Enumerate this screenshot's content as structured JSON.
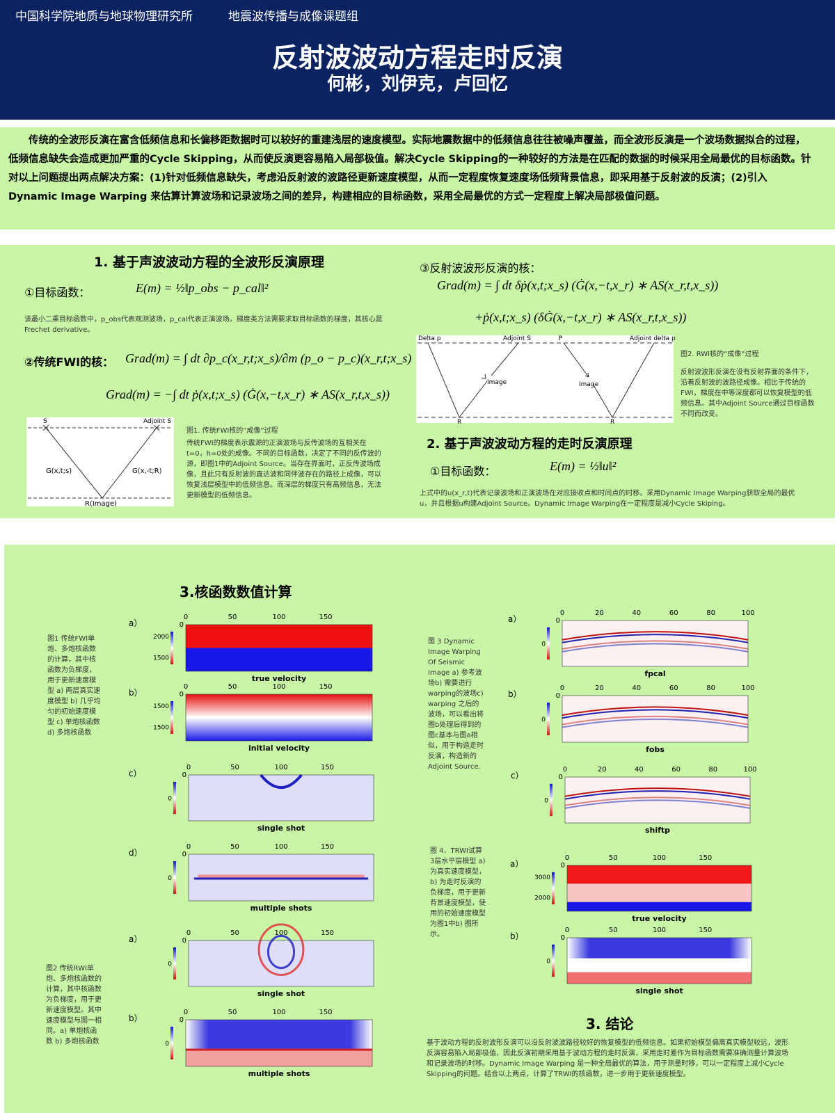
{
  "header": {
    "institution": "中国科学院地质与地球物理研究所",
    "group": "地震波传播与成像课题组",
    "title": "反射波波动方程走时反演",
    "authors": "何彬，刘伊克，卢回忆"
  },
  "abstract": "传统的全波形反演在富含低频信息和长偏移距数据时可以较好的重建浅层的速度模型。实际地震数据中的低频信息往往被噪声覆盖，而全波形反演是一个波场数据拟合的过程，低频信息缺失会造成更加严重的Cycle Skipping，从而使反演更容易陷入局部极值。解决Cycle Skipping的一种较好的方法是在匹配的数据的时候采用全局最优的目标函数。针对以上问题提出两点解决方案：(1)针对低频信息缺失，考虑沿反射波的波路径更新速度模型，从而一定程度恢复速度场低频背景信息，即采用基于反射波的反演；(2)引入 Dynamic Image Warping 来估算计算波场和记录波场之间的差异，构建相应的目标函数，采用全局最优的方式一定程度上解决局部极值问题。",
  "section1": {
    "heading": "1. 基于声波波动方程的全波形反演原理",
    "objective_label": "①目标函数：",
    "objective_formula": "E(m) = ½‖p_obs − p_cal‖²",
    "objective_note": "该最小二乘目标函数中，p_obs代表观测波场，p_cal代表正演波场。梯度类方法需要求取目标函数的梯度，其核心是Frechet derivative。",
    "kernel_label": "②传统FWI的核：",
    "kernel_formula1": "Grad(m) = ∫ dt ∂p_c(x_r,t;x_s)/∂m (p_o − p_c)(x_r,t;x_s)",
    "kernel_formula2": "Grad(m) = −∫ dt ṗ(x,t;x_s) (Ġ(x,−t,x_r) ∗ AS(x_r,t,x_s))",
    "diagram": {
      "source": "S",
      "adjoint": "Adjoint S",
      "left_path": "G(x,t;s)",
      "right_path": "G(x,-t;R)",
      "image": "R(Image)"
    },
    "caption_title": "图1. 传统FWI核的“成像”过程",
    "caption": "传统FWI的梯度表示震源的正演波场与反传波场的互相关在t=0，h=0处的成像。不同的目标函数，决定了不同的反传波的源，即图1中的Adjoint Source。当存在界面时，正反传波场成像，且此只有反射波的直达波和同伴波存在的路径上成像，可以恢复浅层模型中的低频信息。而深层的梯度只有高频信息，无法更新模型的低频信息。"
  },
  "rwi": {
    "heading": "③反射波波形反演的核：",
    "formula1": "Grad(m) = ∫ dt δṗ(x,t;x_s) (Ġ(x,−t,x_r) ∗ AS(x_r,t,x_s))",
    "formula2": "+ṗ(x,t;x_s) (δĠ(x,−t,x_r) ∗ AS(x_r,t,x_s))",
    "diagram": {
      "delta_p": "Delta p",
      "adjoint_s": "Adjoint S",
      "image_left": "Image",
      "r_left": "R",
      "p": "P",
      "adjoint_delta_p": "Adjoint delta p",
      "image_right": "Image",
      "r_right": "R"
    },
    "caption_title": "图2. RWI核的“成像”过程",
    "caption": "反射波波形反演在没有反射界面的条件下，沿着反射波的波路径成像。相比于传统的FWI，梯度在中等深度都可以恢复模型的低频信息。其中Adjoint Source通过目标函数不同而改变。"
  },
  "section2": {
    "heading": "2. 基于声波波动方程的走时反演原理",
    "objective_label": "①目标函数：",
    "objective_formula": "E(m) = ½‖u‖²",
    "note": "上式中的u(x_r,t)代表记录波场和正演波场在对应接收点和时间点的时移。采用Dynamic Image Warping获取全局的最优u，并且根据u构建Adjoint Source。Dynamic Image Warping在一定程度是减小Cycle Skiping。"
  },
  "section3": {
    "heading": "3.核函数数值计算",
    "captions": [
      "图1 传统FWI单炮、多炮核函数的计算，其中核函数为负梯度，用于更新速度模型 a) 两层真实速度模型 b) 几乎均匀的初始速度模型 c) 单炮核函数 d) 多炮核函数",
      "图2 传统RWI单炮、多炮核函数的计算，其中核函数为负梯度，用于更新速度模型。其中速度模型与图一相同。a) 单炮核函数 b) 多炮核函数",
      "图 3 Dynamic Image Warping Of Seismic Image a) 参考波场b) 需要进行warping的波场c) warping 之后的波场，可以看出将图b处理后得到的图c基本与图a相似，用于构造走时反演，构造新的Adjoint Source.",
      "图 4．TRWI试算3层水平层模型 a) 为真实速度模型，b) 为走时反演的负梯度，用于更新背景速度模型，使用的初始速度模型为图1中b) 图所示。"
    ],
    "panels": [
      {
        "letter": "a）",
        "xticks": [
          0,
          50,
          100,
          150
        ],
        "ytick": 0,
        "colorbar": [
          2000,
          1500
        ],
        "caption": "true velocity"
      },
      {
        "letter": "b）",
        "xticks": [
          0,
          50,
          100,
          150
        ],
        "ytick": 0,
        "colorbar": [
          1500,
          1500
        ],
        "caption": "initial velocity"
      },
      {
        "letter": "c）",
        "xticks": [
          0,
          50,
          100,
          150
        ],
        "ytick": 0,
        "colorbar": [
          0
        ],
        "caption": "single shot"
      },
      {
        "letter": "d）",
        "xticks": [
          0,
          50,
          100,
          150
        ],
        "ytick": 0,
        "colorbar": [
          0
        ],
        "caption": "multiple shots"
      },
      {
        "letter": "a）",
        "xticks": [
          0,
          50,
          100,
          150
        ],
        "ytick": 0,
        "colorbar": [
          0
        ],
        "caption": "single shot"
      },
      {
        "letter": "b）",
        "xticks": [
          0,
          50,
          100,
          150
        ],
        "ytick": 0,
        "colorbar": [
          0
        ],
        "caption": "multiple shots"
      },
      {
        "letter": "a）",
        "xticks": [
          0,
          20,
          40,
          60,
          80,
          100
        ],
        "ytick": 0,
        "colorbar": [
          0
        ],
        "caption": "fpcal"
      },
      {
        "letter": "b）",
        "xticks": [
          0,
          20,
          40,
          60,
          80,
          100
        ],
        "ytick": 0,
        "colorbar": [
          0
        ],
        "caption": "fobs"
      },
      {
        "letter": "c）",
        "xticks": [
          0,
          20,
          40,
          60,
          80,
          100
        ],
        "ytick": 0,
        "colorbar": [
          0
        ],
        "caption": "shiftp"
      },
      {
        "letter": "a）",
        "xticks": [
          0,
          50,
          100,
          150
        ],
        "ytick": 0,
        "colorbar": [
          3000,
          2000
        ],
        "caption": "true velocity"
      },
      {
        "letter": "b）",
        "xticks": [
          0,
          50,
          100,
          150
        ],
        "ytick": 0,
        "colorbar": [
          0
        ],
        "caption": "single shot"
      }
    ]
  },
  "conclusion": {
    "heading": "3. 结论",
    "text": "基于波动方程的反射波形反演可以沿反射波波路径较好的恢复模型的低频信息。如果初始模型偏离真实模型较远，波形反演容易陷入局部极值，因此反演初期采用基于波动方程的走时反演，采用走时差作为目标函数需要准确测量计算波场和记录波场的时移。Dynamic Image Warping 是一种全局最优的算法，用于测量时移，可以一定程度上减小Cycle Skipping的问题。结合以上两点，计算了TRWI的核函数，进一步用于更新速度模型。"
  }
}
